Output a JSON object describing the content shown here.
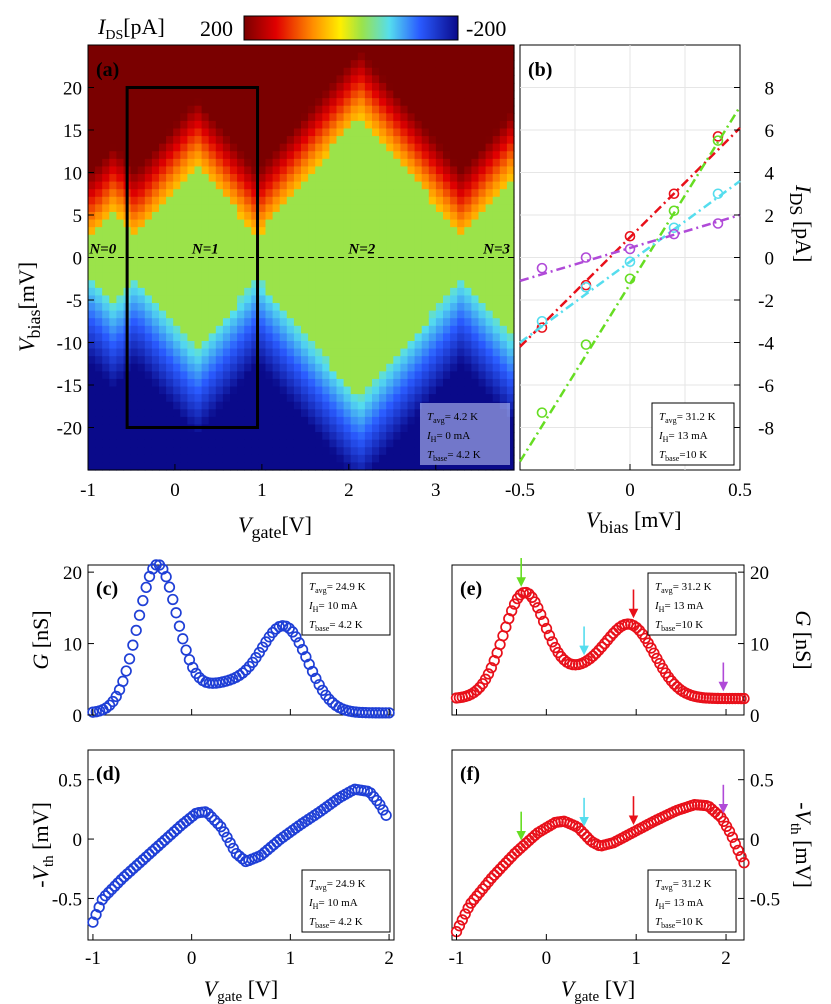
{
  "colors": {
    "blue": "#1f3fd6",
    "red": "#e8101a",
    "green": "#66dd22",
    "cyan": "#55ddee",
    "purple": "#b04ad8",
    "box": "#000000"
  },
  "chart_data": [
    {
      "id": "a",
      "type": "heatmap",
      "panel_label": "(a)",
      "title": "I_DS[pA]",
      "colorbar": {
        "label_main": "I",
        "label_sub": "DS",
        "label_unit": "[pA]",
        "max_label": "200",
        "min_label": "-200",
        "range": [
          -200,
          200
        ]
      },
      "xlabel": {
        "main": "V",
        "sub": "gate",
        "unit": "[V]"
      },
      "ylabel": {
        "main": "V",
        "sub": "bias",
        "unit": "[mV]"
      },
      "xlim": [
        -1,
        3.9
      ],
      "ylim": [
        -25,
        25
      ],
      "xticks": [
        -1,
        0,
        1,
        2,
        3
      ],
      "xtick_labels": [
        "-1",
        "0",
        "1",
        "2",
        "3"
      ],
      "yticks": [
        -20,
        -15,
        -10,
        -5,
        0,
        5,
        10,
        15,
        20
      ],
      "ytick_labels": [
        "-20",
        "-15",
        "-10",
        "-5",
        "0",
        "5",
        "10",
        "15",
        "20"
      ],
      "charge_states": [
        {
          "label": "N=0",
          "x": -0.83
        },
        {
          "label": "N=1",
          "x": 0.35
        },
        {
          "label": "N=2",
          "x": 2.15
        },
        {
          "label": "N=3",
          "x": 3.7
        }
      ],
      "diamond_vertices_vgate": [
        -0.95,
        -0.45,
        0.95,
        3.3
      ],
      "selection_box": {
        "x": [
          -0.55,
          0.95
        ],
        "y": [
          -20,
          20
        ]
      },
      "legend": {
        "Tavg": "= 4.2 K",
        "IH": "= 0 mA",
        "Tbase": "= 4.2 K"
      }
    },
    {
      "id": "b",
      "type": "scatter",
      "panel_label": "(b)",
      "xlabel": {
        "main": "V",
        "sub": "bias",
        "unit": " [mV]"
      },
      "ylabel": {
        "main": "I",
        "sub": "DS",
        "unit": " [pA]"
      },
      "xlim": [
        -0.5,
        0.5
      ],
      "ylim": [
        -10,
        10
      ],
      "xticks": [
        -0.5,
        0,
        0.5
      ],
      "xtick_labels": [
        "-0.5",
        "0",
        "0.5"
      ],
      "yticks": [
        -8,
        -6,
        -4,
        -2,
        0,
        2,
        4,
        6,
        8
      ],
      "ytick_labels": [
        "-8",
        "-6",
        "-4",
        "-2",
        "0",
        "2",
        "4",
        "6",
        "8"
      ],
      "x": [
        -0.4,
        -0.2,
        0,
        0.2,
        0.4
      ],
      "series": [
        {
          "name": "red",
          "color": "#e8101a",
          "values": [
            -3.3,
            -1.3,
            1.0,
            3.0,
            5.7
          ],
          "fit": [
            -4.2,
            6.1
          ]
        },
        {
          "name": "green",
          "color": "#66dd22",
          "values": [
            -7.3,
            -4.1,
            -1.0,
            2.2,
            5.5
          ],
          "fit": [
            -9.6,
            7.1
          ]
        },
        {
          "name": "cyan",
          "color": "#55ddee",
          "values": [
            -3.0,
            -1.4,
            -0.2,
            1.4,
            3.0
          ],
          "fit": [
            -4.0,
            3.6
          ]
        },
        {
          "name": "purple",
          "color": "#b04ad8",
          "values": [
            -0.5,
            0.0,
            0.4,
            1.1,
            1.6
          ],
          "fit": [
            -1.1,
            2.0
          ]
        }
      ],
      "legend": {
        "Tavg": "= 31.2 K",
        "IH": "= 13 mA",
        "Tbase": "=10 K"
      }
    },
    {
      "id": "c",
      "type": "scatter",
      "panel_label": "(c)",
      "ylabel": {
        "main": "G",
        "unit": "  [nS]"
      },
      "xlim": [
        -1.05,
        2.05
      ],
      "ylim": [
        0,
        21
      ],
      "xticks": [
        -1,
        0,
        1,
        2
      ],
      "yticks": [
        0,
        10,
        20
      ],
      "ytick_labels": [
        "0",
        "10",
        "20"
      ],
      "peaks": [
        {
          "x": -0.35,
          "y": 20.2,
          "w": 0.28
        },
        {
          "x": 0.95,
          "y": 11.2,
          "w": 0.33
        }
      ],
      "baseline": 0.3,
      "x_range": [
        -1.0,
        2.0
      ],
      "n_points": 90,
      "legend": {
        "Tavg": "= 24.9 K",
        "IH": "= 10 mA",
        "Tbase": "= 4.2 K"
      }
    },
    {
      "id": "d",
      "type": "scatter",
      "panel_label": "(d)",
      "xlabel": {
        "main": "V",
        "sub": "gate",
        "unit": "  [V]"
      },
      "ylabel": {
        "main": "-V",
        "sub": "th",
        "unit": "  [mV]"
      },
      "xlim": [
        -1.05,
        2.05
      ],
      "ylim": [
        -0.85,
        0.75
      ],
      "xticks": [
        -1,
        0,
        1,
        2
      ],
      "xtick_labels": [
        "-1",
        "0",
        "1",
        "2"
      ],
      "yticks": [
        -0.5,
        0,
        0.5
      ],
      "ytick_labels": [
        "-0.5",
        "0",
        "0.5"
      ],
      "curve_x": [
        -1.0,
        -0.9,
        -0.7,
        -0.5,
        -0.3,
        -0.1,
        0.05,
        0.15,
        0.3,
        0.45,
        0.55,
        0.7,
        0.9,
        1.1,
        1.3,
        1.5,
        1.65,
        1.8,
        1.9,
        1.97
      ],
      "curve_y": [
        -0.7,
        -0.5,
        -0.33,
        -0.18,
        -0.03,
        0.12,
        0.22,
        0.23,
        0.1,
        -0.12,
        -0.19,
        -0.14,
        0.0,
        0.12,
        0.23,
        0.35,
        0.42,
        0.4,
        0.3,
        0.2
      ],
      "x_range": [
        -1.0,
        1.97
      ],
      "n_points": 95,
      "legend": {
        "Tavg": "= 24.9 K",
        "IH": "= 10 mA",
        "Tbase": "= 4.2 K"
      }
    },
    {
      "id": "e",
      "type": "scatter",
      "panel_label": "(e)",
      "ylabel": {
        "main": "G",
        "unit": "  [nS]"
      },
      "xlim": [
        -1.05,
        2.2
      ],
      "ylim": [
        0,
        21
      ],
      "xticks": [
        -1,
        0,
        1,
        2
      ],
      "yticks": [
        0,
        10,
        20
      ],
      "ytick_labels": [
        "0",
        "10",
        "20"
      ],
      "peaks": [
        {
          "x": -0.25,
          "y": 14.2,
          "w": 0.33
        },
        {
          "x": 0.95,
          "y": 9.3,
          "w": 0.38
        }
      ],
      "baseline": 2.3,
      "x_range": [
        -1.0,
        2.2
      ],
      "n_points": 100,
      "arrows": [
        {
          "x": -0.28,
          "color": "#66dd22"
        },
        {
          "x": 0.42,
          "color": "#55ddee"
        },
        {
          "x": 0.97,
          "color": "#e8101a"
        },
        {
          "x": 1.97,
          "color": "#b04ad8"
        }
      ],
      "legend": {
        "Tavg": "= 31.2 K",
        "IH": "= 13 mA",
        "Tbase": "=10 K"
      }
    },
    {
      "id": "f",
      "type": "scatter",
      "panel_label": "(f)",
      "xlabel": {
        "main": "V",
        "sub": "gate",
        "unit": "  [V]"
      },
      "ylabel": {
        "main": "-V",
        "sub": "th",
        "unit": "  [mV]"
      },
      "xlim": [
        -1.05,
        2.2
      ],
      "ylim": [
        -0.85,
        0.75
      ],
      "xticks": [
        -1,
        0,
        1,
        2
      ],
      "xtick_labels": [
        "-1",
        "0",
        "1",
        "2"
      ],
      "yticks": [
        -0.5,
        0,
        0.5
      ],
      "ytick_labels": [
        "-0.5",
        "0",
        "0.5"
      ],
      "curve_x": [
        -1.0,
        -0.85,
        -0.6,
        -0.35,
        -0.1,
        0.1,
        0.2,
        0.35,
        0.5,
        0.6,
        0.75,
        0.95,
        1.2,
        1.45,
        1.65,
        1.8,
        1.95,
        2.05,
        2.15,
        2.2
      ],
      "curve_y": [
        -0.78,
        -0.55,
        -0.32,
        -0.12,
        0.05,
        0.14,
        0.15,
        0.1,
        -0.02,
        -0.06,
        -0.03,
        0.05,
        0.15,
        0.24,
        0.29,
        0.28,
        0.18,
        0.05,
        -0.12,
        -0.2
      ],
      "x_range": [
        -1.0,
        2.2
      ],
      "n_points": 100,
      "arrows": [
        {
          "x": -0.28,
          "color": "#66dd22"
        },
        {
          "x": 0.42,
          "color": "#55ddee"
        },
        {
          "x": 0.97,
          "color": "#e8101a"
        },
        {
          "x": 1.97,
          "color": "#b04ad8"
        }
      ],
      "legend": {
        "Tavg": "= 31.2 K",
        "IH": "= 13 mA",
        "Tbase": "=10 K"
      }
    }
  ]
}
